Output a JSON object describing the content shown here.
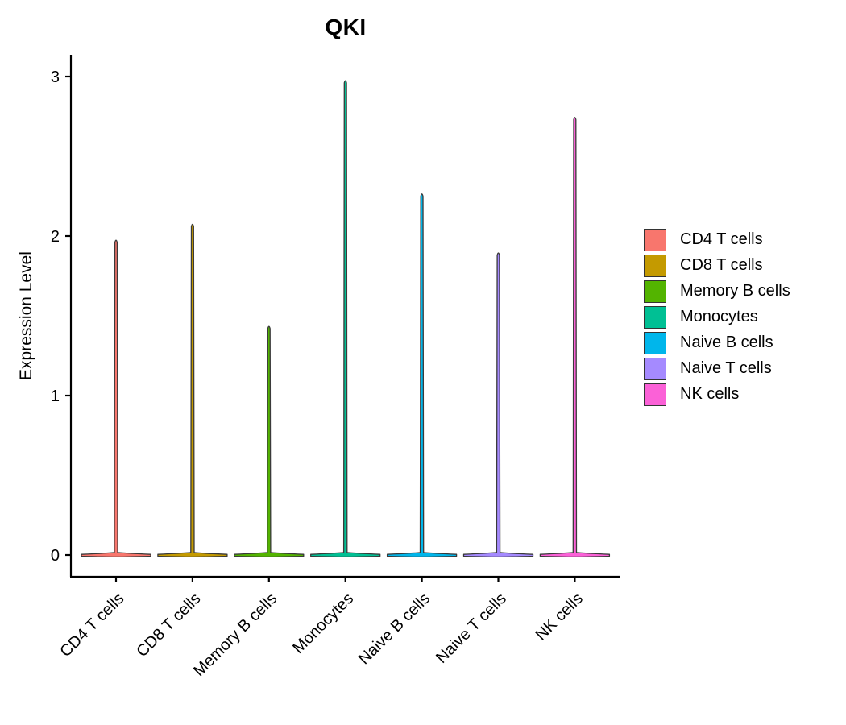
{
  "chart_data": {
    "type": "violin",
    "title": "QKI",
    "ylabel": "Expression Level",
    "xlabel": "",
    "categories": [
      "CD4 T cells",
      "CD8 T cells",
      "Memory B cells",
      "Monocytes",
      "Naive B cells",
      "Naive T cells",
      "NK cells"
    ],
    "series": [
      {
        "name": "CD4 T cells",
        "color": "#F8766D",
        "min_expression": 0,
        "max_expression": 1.98
      },
      {
        "name": "CD8 T cells",
        "color": "#C49A00",
        "min_expression": 0,
        "max_expression": 2.08
      },
      {
        "name": "Memory B cells",
        "color": "#53B400",
        "min_expression": 0,
        "max_expression": 1.44
      },
      {
        "name": "Monocytes",
        "color": "#00C094",
        "min_expression": 0,
        "max_expression": 2.98
      },
      {
        "name": "Naive B cells",
        "color": "#00B6EB",
        "min_expression": 0,
        "max_expression": 2.27
      },
      {
        "name": "Naive T cells",
        "color": "#A58AFF",
        "min_expression": 0,
        "max_expression": 1.9
      },
      {
        "name": "NK cells",
        "color": "#FB61D7",
        "min_expression": 0,
        "max_expression": 2.75
      }
    ],
    "shape_note": "each violin is a wide flat density bulge at 0 with a thin needle spike rising to max_expression",
    "yticks": [
      0,
      1,
      2,
      3
    ],
    "ylim": [
      0,
      3
    ],
    "x_tick_label_rotation_deg": 45,
    "grid": false,
    "legend_position": "right",
    "outline_color": "#3A3A3A",
    "axis_color": "#000000"
  }
}
